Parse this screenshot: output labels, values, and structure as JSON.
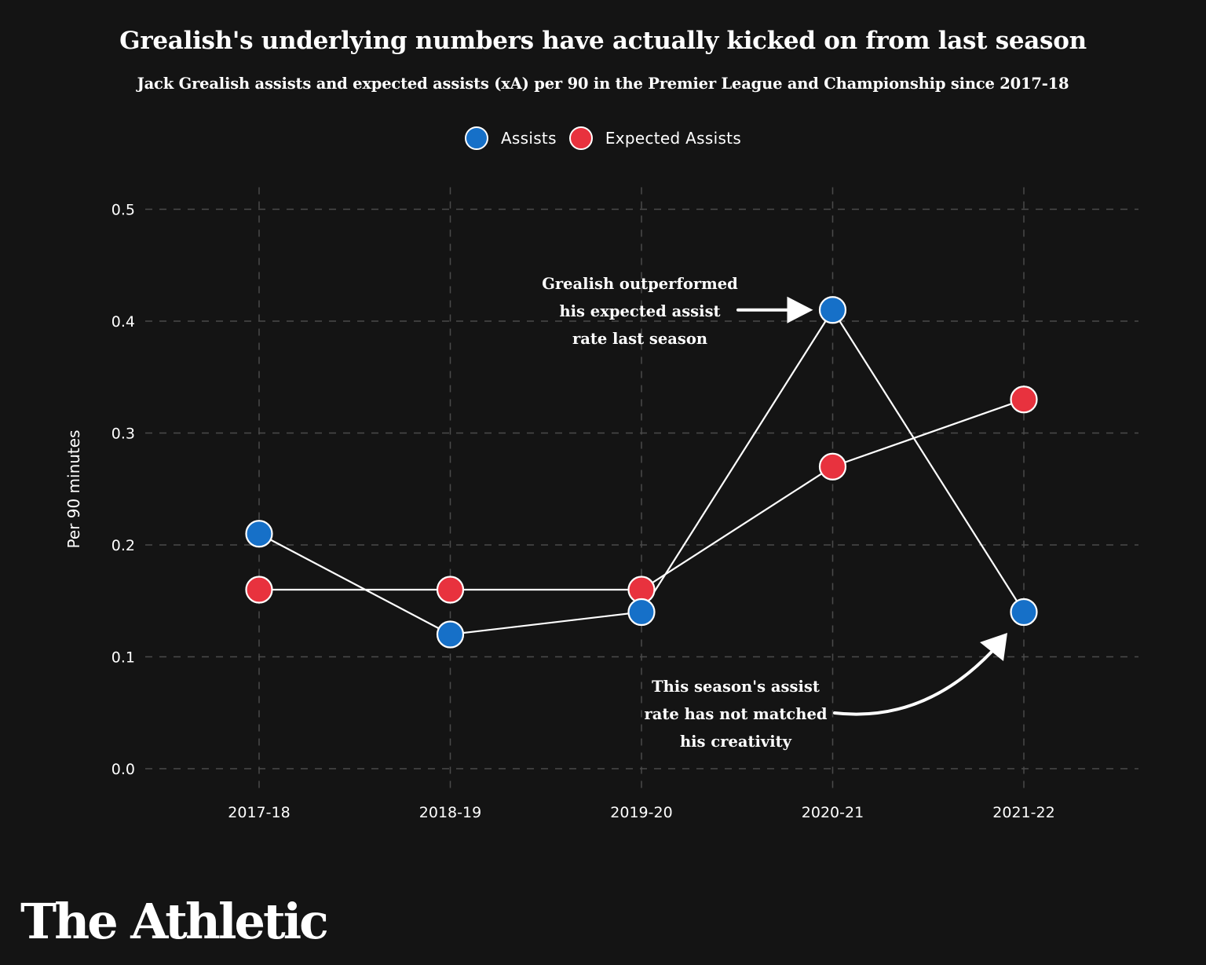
{
  "header": {
    "title": "Grealish's underlying numbers have actually kicked on from last season",
    "subtitle": "Jack Grealish assists and expected assists (xA) per 90 in the Premier League and Championship since 2017-18"
  },
  "colors": {
    "background": "#141414",
    "assists": "#1670c8",
    "expected_assists": "#e8323e",
    "lines": "#ffffff",
    "grid": "#4a4a4a"
  },
  "chart_data": {
    "type": "line",
    "categories": [
      "2017-18",
      "2018-19",
      "2019-20",
      "2020-21",
      "2021-22"
    ],
    "series": [
      {
        "name": "Assists",
        "values": [
          0.21,
          0.12,
          0.14,
          0.41,
          0.14
        ]
      },
      {
        "name": "Expected Assists",
        "values": [
          0.16,
          0.16,
          0.16,
          0.27,
          0.33
        ]
      }
    ],
    "ylabel": "Per 90 minutes",
    "xlabel": "",
    "ylim": [
      0,
      0.5
    ],
    "yticks": [
      "0.0",
      "0.1",
      "0.2",
      "0.3",
      "0.4",
      "0.5"
    ],
    "grid": true,
    "legend_position": "top-center",
    "annotations": [
      {
        "lines": [
          "Grealish outperformed",
          "his expected assist",
          "rate last season"
        ],
        "target_series": "Assists",
        "target_category": "2020-21"
      },
      {
        "lines": [
          "This season's assist",
          "rate has not matched",
          "his creativity"
        ],
        "target_series": "Assists",
        "target_category": "2021-22"
      }
    ]
  },
  "footer": {
    "logo_text": "The Athletic"
  }
}
